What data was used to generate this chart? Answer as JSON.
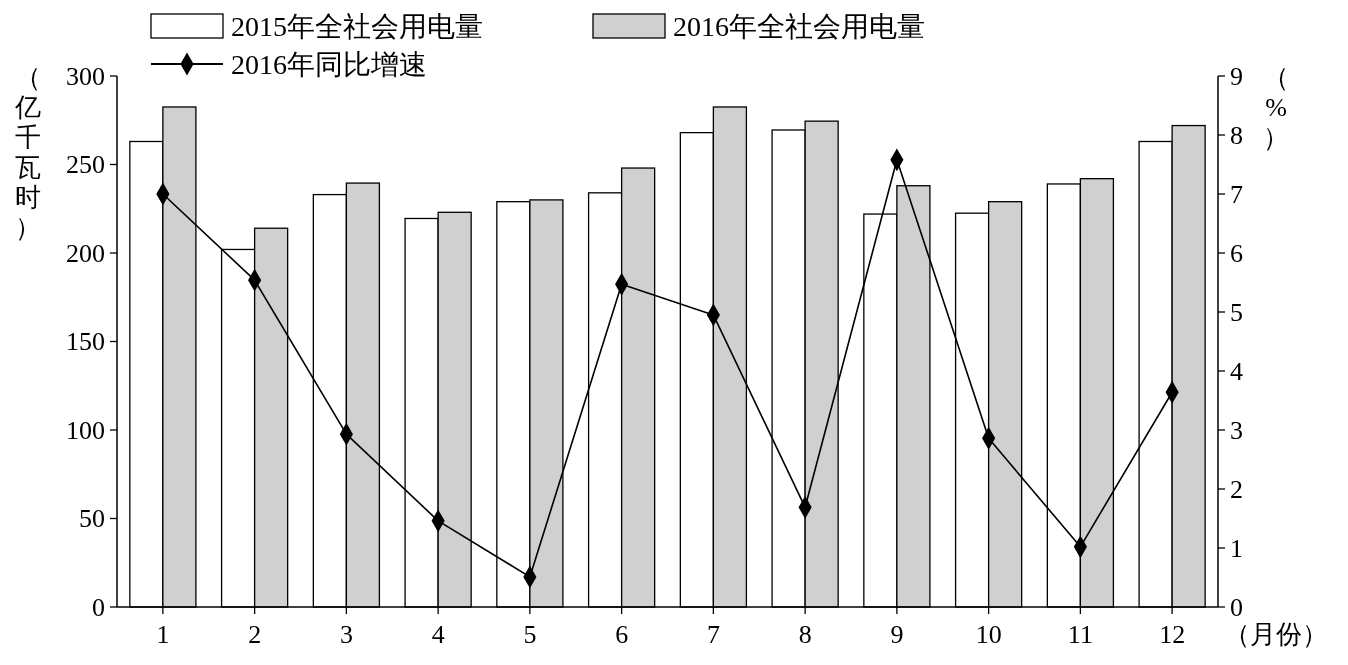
{
  "chart_data": {
    "type": "bar",
    "categories": [
      "1",
      "2",
      "3",
      "4",
      "5",
      "6",
      "7",
      "8",
      "9",
      "10",
      "11",
      "12"
    ],
    "series": [
      {
        "name": "2015年全社会用电量",
        "color": "#ffffff",
        "values": [
          263,
          202,
          233,
          219.5,
          229,
          234,
          268,
          269.5,
          222,
          222.5,
          239,
          263
        ]
      },
      {
        "name": "2016年全社会用电量",
        "color": "#d0d0d0",
        "values": [
          282.5,
          214,
          239.5,
          223,
          230,
          248,
          282.5,
          274.5,
          238,
          229,
          242,
          272
        ]
      },
      {
        "name": "2016年同比增速",
        "type": "line",
        "axis": "y2",
        "color": "#000000",
        "marker": "diamond",
        "values": [
          7.0,
          5.54,
          2.93,
          1.46,
          0.51,
          5.47,
          4.95,
          1.69,
          7.58,
          2.86,
          1.02,
          3.64
        ]
      }
    ],
    "xlabel": "（月份）",
    "ylabel": "（亿千瓦时）",
    "y2label": "（%）",
    "ylim": [
      0,
      300
    ],
    "yticks": [
      0,
      50,
      100,
      150,
      200,
      250,
      300
    ],
    "y2lim": [
      0,
      9
    ],
    "y2ticks": [
      0,
      1,
      2,
      3,
      4,
      5,
      6,
      7,
      8,
      9
    ],
    "legend": "top left",
    "grid": false
  }
}
